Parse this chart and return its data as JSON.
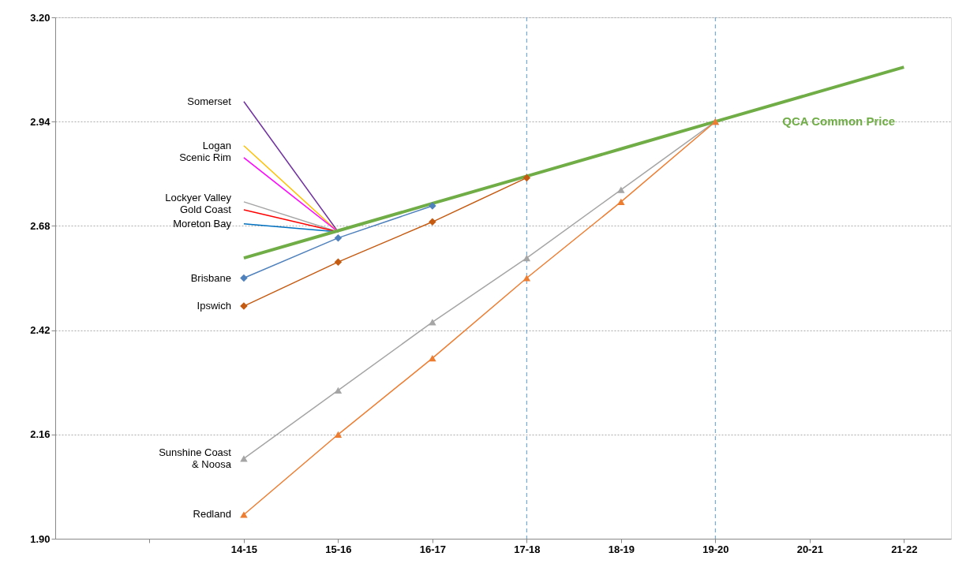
{
  "chart_data": {
    "type": "line",
    "categories": [
      null,
      "14-15",
      "15-16",
      "16-17",
      "17-18",
      "18-19",
      "19-20",
      "20-21",
      "21-22"
    ],
    "ylim": [
      1.9,
      3.2
    ],
    "yticks": [
      {
        "value": 1.9,
        "label": "1.90"
      },
      2.16,
      2.42,
      2.68,
      2.94,
      {
        "value": 3.2,
        "label": "3.20"
      }
    ],
    "grid": "y",
    "ref_lines": [
      {
        "axis": "x",
        "value": "17-18",
        "color": "#5b9bd5",
        "line_style": "dashed"
      },
      {
        "axis": "x",
        "value": "19-20",
        "color": "#5b9bd5",
        "line_style": "dashed"
      }
    ],
    "series": [
      {
        "name": "Somerset",
        "color": "#7030a0",
        "marker": "none",
        "values": [
          null,
          2.99,
          2.665,
          null,
          null,
          null,
          null,
          null,
          null
        ]
      },
      {
        "name": "Logan",
        "color": "#ffc000",
        "marker": "none",
        "values": [
          null,
          2.88,
          2.665,
          null,
          null,
          null,
          null,
          null,
          null
        ]
      },
      {
        "name": "Scenic Rim",
        "color": "#ff00ff",
        "marker": "none",
        "values": [
          null,
          2.85,
          2.665,
          null,
          null,
          null,
          null,
          null,
          null
        ]
      },
      {
        "name": "Lockyer Valley",
        "color": "#a5a5a5",
        "marker": "none",
        "values": [
          null,
          2.74,
          2.665,
          null,
          null,
          null,
          null,
          null,
          null
        ]
      },
      {
        "name": "Gold Coast",
        "color": "#ff0000",
        "marker": "none",
        "values": [
          null,
          2.72,
          2.665,
          null,
          null,
          null,
          null,
          null,
          null
        ]
      },
      {
        "name": "Moreton Bay",
        "color": "#0070c0",
        "marker": "none",
        "values": [
          null,
          2.685,
          2.665,
          null,
          null,
          null,
          null,
          null,
          null
        ]
      },
      {
        "name": "Brisbane",
        "color": "#4f81bd",
        "marker": "diamond",
        "values": [
          null,
          2.55,
          2.65,
          2.73,
          null,
          null,
          null,
          null,
          null
        ]
      },
      {
        "name": "Ipswich",
        "color": "#c55a11",
        "marker": "diamond",
        "values": [
          null,
          2.48,
          2.59,
          2.69,
          2.8,
          null,
          null,
          null,
          null
        ]
      },
      {
        "name": "Sunshine Coast\n& Noosa",
        "color": "#a5a5a5",
        "marker": "triangle",
        "values": [
          null,
          2.1,
          2.27,
          2.44,
          2.6,
          2.77,
          2.94,
          null,
          null
        ]
      },
      {
        "name": "Redland",
        "color": "#ed7d31",
        "marker": "triangle",
        "values": [
          null,
          1.96,
          2.16,
          2.35,
          2.55,
          2.74,
          2.94,
          null,
          null
        ]
      },
      {
        "name": "QCA Common Price",
        "color": "#70ad47",
        "marker": "none",
        "values": [
          null,
          2.6,
          2.668,
          2.736,
          2.804,
          2.872,
          2.94,
          3.008,
          3.076
        ]
      }
    ]
  }
}
